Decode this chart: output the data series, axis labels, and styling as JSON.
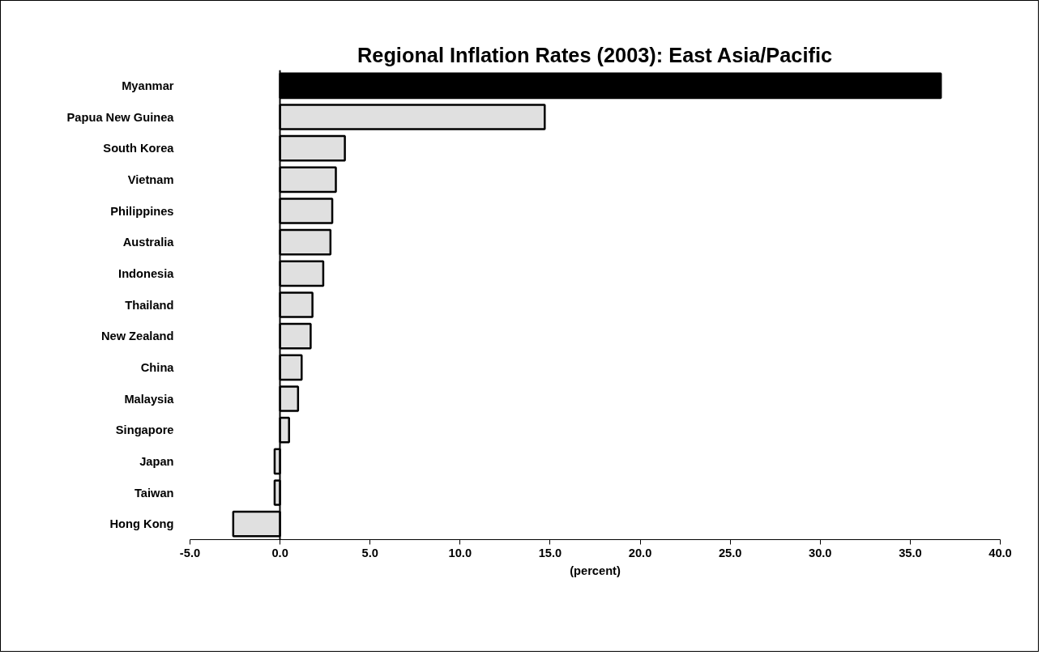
{
  "chart_data": {
    "type": "bar",
    "orientation": "horizontal",
    "title": "Regional Inflation Rates (2003): East Asia/Pacific",
    "xlabel": "(percent)",
    "categories": [
      "Myanmar",
      "Papua New Guinea",
      "South Korea",
      "Vietnam",
      "Philippines",
      "Australia",
      "Indonesia",
      "Thailand",
      "New Zealand",
      "China",
      "Malaysia",
      "Singapore",
      "Japan",
      "Taiwan",
      "Hong Kong"
    ],
    "values": [
      36.7,
      14.7,
      3.6,
      3.1,
      2.9,
      2.8,
      2.4,
      1.8,
      1.7,
      1.2,
      1.0,
      0.5,
      -0.3,
      -0.3,
      -2.6
    ],
    "colors": [
      "#000000",
      "#e0e0e0",
      "#e0e0e0",
      "#e0e0e0",
      "#e0e0e0",
      "#e0e0e0",
      "#e0e0e0",
      "#e0e0e0",
      "#e0e0e0",
      "#e0e0e0",
      "#e0e0e0",
      "#e0e0e0",
      "#e0e0e0",
      "#e0e0e0",
      "#e0e0e0"
    ],
    "xlim": [
      -5,
      40
    ],
    "xticks": [
      {
        "value": -5,
        "label": "-5.0"
      },
      {
        "value": 0,
        "label": "0.0"
      },
      {
        "value": 5,
        "label": "5.0"
      },
      {
        "value": 10,
        "label": "10.0"
      },
      {
        "value": 15,
        "label": "15.0"
      },
      {
        "value": 20,
        "label": "20.0"
      },
      {
        "value": 25,
        "label": "25.0"
      },
      {
        "value": 30,
        "label": "30.0"
      },
      {
        "value": 35,
        "label": "35.0"
      },
      {
        "value": 40,
        "label": "40.0"
      }
    ],
    "data_labels": false
  }
}
